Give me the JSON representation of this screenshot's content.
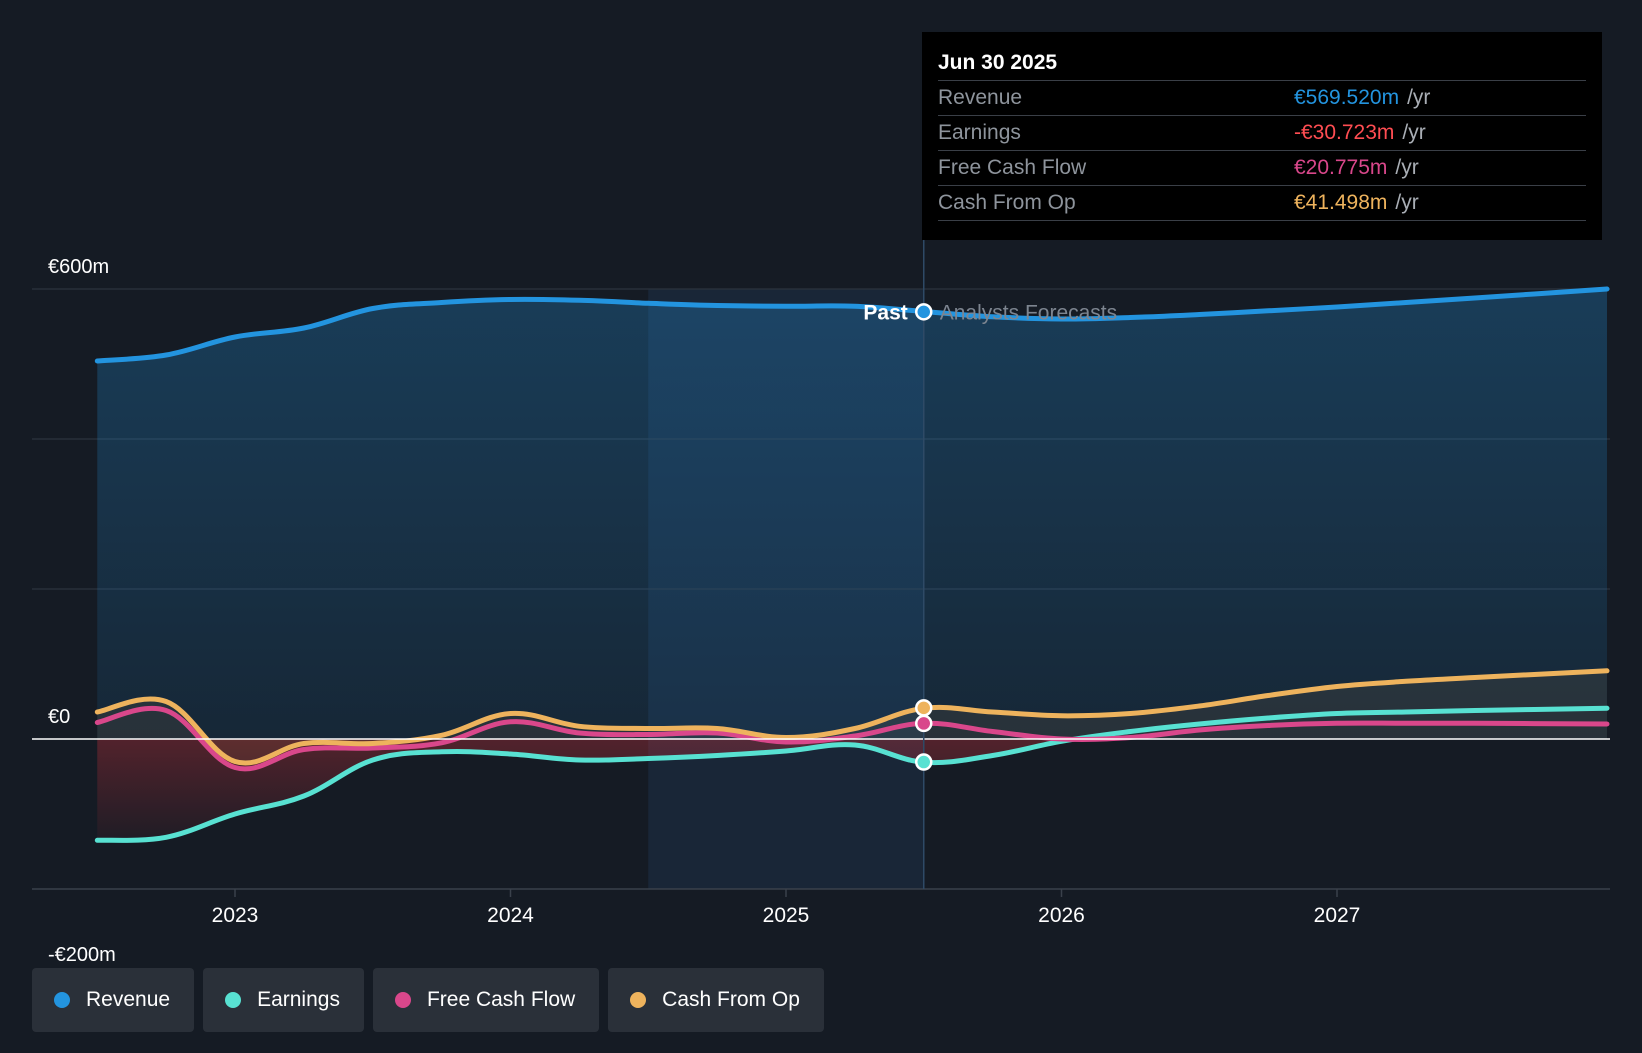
{
  "colors": {
    "background": "#151b24",
    "revenue": "#2394df",
    "earnings": "#58e1d2",
    "free_cash_flow": "#d9478b",
    "cash_from_op": "#eeb35d",
    "earnings_negative": "#ff4d52"
  },
  "tooltip": {
    "date": "Jun 30 2025",
    "rows": [
      {
        "label": "Revenue",
        "value": "€569.520m",
        "unit": "/yr",
        "color": "#2394df"
      },
      {
        "label": "Earnings",
        "value": "-€30.723m",
        "unit": "/yr",
        "color": "#ff4d52"
      },
      {
        "label": "Free Cash Flow",
        "value": "€20.775m",
        "unit": "/yr",
        "color": "#d9478b"
      },
      {
        "label": "Cash From Op",
        "value": "€41.498m",
        "unit": "/yr",
        "color": "#eeb35d"
      }
    ]
  },
  "chart_data": {
    "type": "line",
    "title": "",
    "xlabel": "",
    "ylabel": "",
    "ylim": [
      -200,
      600
    ],
    "xlim": [
      2022.25,
      2027.98
    ],
    "y_axis_labels": [
      "€600m",
      "€0",
      "-€200m"
    ],
    "x_ticks": [
      2023,
      2024,
      2025,
      2026,
      2027
    ],
    "x_tick_labels": [
      "2023",
      "2024",
      "2025",
      "2026",
      "2027"
    ],
    "past_label": "Past",
    "forecast_label": "Analysts Forecasts",
    "divider_x": 2025.5,
    "highlight_x": [
      2024.5,
      2025.5
    ],
    "series": [
      {
        "name": "Revenue",
        "color": "#2394df",
        "x": [
          2022.5,
          2022.75,
          2023.0,
          2023.25,
          2023.5,
          2023.75,
          2024.0,
          2024.25,
          2024.5,
          2024.75,
          2025.0,
          2025.25,
          2025.5,
          2025.75,
          2026.0,
          2026.25,
          2026.5,
          2026.75,
          2027.0,
          2027.25,
          2027.5,
          2027.98
        ],
        "values": [
          504,
          512,
          536,
          548,
          574,
          582,
          586,
          585,
          581,
          578,
          577,
          577,
          570,
          563,
          560,
          562,
          566,
          571,
          576,
          582,
          588,
          600
        ]
      },
      {
        "name": "Earnings",
        "color": "#58e1d2",
        "x": [
          2022.5,
          2022.75,
          2023.0,
          2023.25,
          2023.5,
          2023.75,
          2024.0,
          2024.25,
          2024.5,
          2024.75,
          2025.0,
          2025.25,
          2025.5,
          2025.75,
          2026.0,
          2026.25,
          2026.5,
          2026.75,
          2027.0,
          2027.25,
          2027.5,
          2027.98
        ],
        "values": [
          -135,
          -131,
          -100,
          -76,
          -28,
          -17,
          -20,
          -28,
          -26,
          -22,
          -16,
          -8,
          -31,
          -22,
          -3,
          10,
          20,
          28,
          34,
          36,
          38,
          41
        ]
      },
      {
        "name": "Free Cash Flow",
        "color": "#d9478b",
        "x": [
          2022.5,
          2022.75,
          2023.0,
          2023.25,
          2023.5,
          2023.75,
          2024.0,
          2024.25,
          2024.5,
          2024.75,
          2025.0,
          2025.25,
          2025.5,
          2025.75,
          2026.0,
          2026.25,
          2026.5,
          2026.75,
          2027.0,
          2027.25,
          2027.5,
          2027.98
        ],
        "values": [
          22,
          38,
          -38,
          -14,
          -12,
          -5,
          23,
          8,
          6,
          8,
          -4,
          4,
          21,
          10,
          0,
          2,
          12,
          18,
          21,
          21,
          21,
          20
        ]
      },
      {
        "name": "Cash From Op",
        "color": "#eeb35d",
        "x": [
          2022.5,
          2022.75,
          2023.0,
          2023.25,
          2023.5,
          2023.75,
          2024.0,
          2024.25,
          2024.5,
          2024.75,
          2025.0,
          2025.25,
          2025.5,
          2025.75,
          2026.0,
          2026.25,
          2026.5,
          2026.75,
          2027.0,
          2027.25,
          2027.5,
          2027.98
        ],
        "values": [
          36,
          50,
          -30,
          -6,
          -6,
          5,
          34,
          17,
          14,
          14,
          2,
          14,
          41,
          36,
          31,
          34,
          44,
          58,
          70,
          77,
          82,
          91
        ]
      }
    ],
    "highlight_points": [
      {
        "series": "Revenue",
        "x": 2025.5,
        "value": 569.52
      },
      {
        "series": "Earnings",
        "x": 2025.5,
        "value": -30.723
      },
      {
        "series": "Free Cash Flow",
        "x": 2025.5,
        "value": 20.775
      },
      {
        "series": "Cash From Op",
        "x": 2025.5,
        "value": 41.498
      }
    ],
    "legend": [
      {
        "label": "Revenue",
        "color": "#2394df"
      },
      {
        "label": "Earnings",
        "color": "#58e1d2"
      },
      {
        "label": "Free Cash Flow",
        "color": "#d9478b"
      },
      {
        "label": "Cash From Op",
        "color": "#eeb35d"
      }
    ]
  }
}
